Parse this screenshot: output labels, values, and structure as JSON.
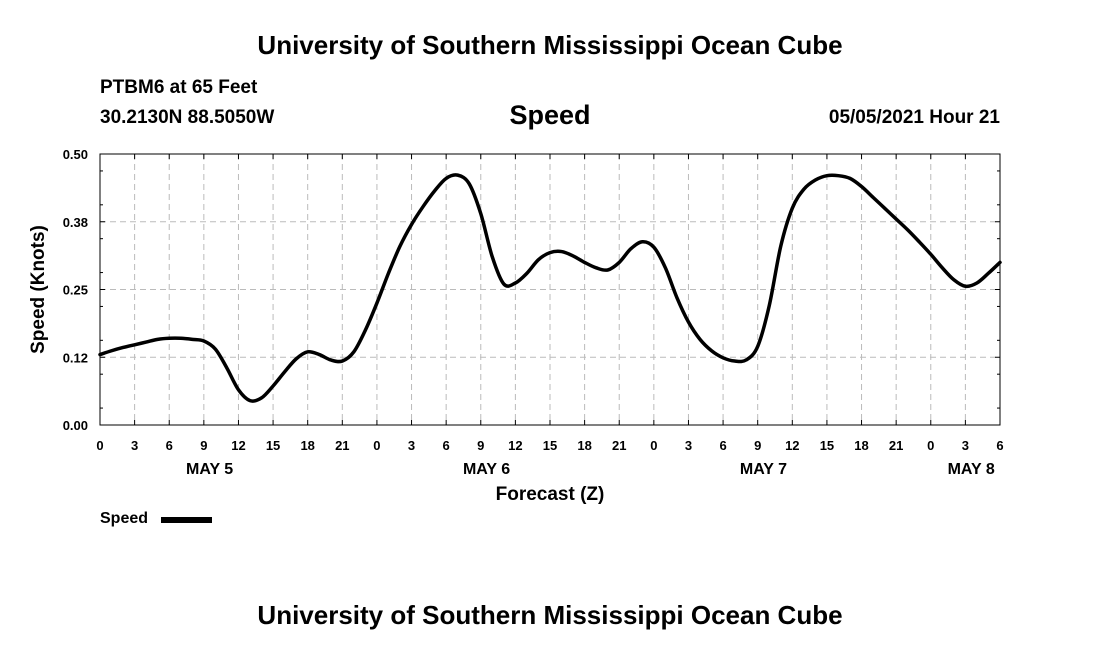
{
  "header": {
    "title": "University of Southern Mississippi Ocean Cube",
    "station": "PTBM6 at 65 Feet",
    "coords": "30.2130N  88.5050W",
    "variable": "Speed",
    "timestamp": "05/05/2021 Hour 21"
  },
  "footer": {
    "title": "University of Southern Mississippi Ocean Cube"
  },
  "legend": {
    "label": "Speed"
  },
  "colors": {
    "line": "#000000",
    "grid": "#bbbbbb",
    "background": "#ffffff"
  },
  "chart_data": {
    "type": "line",
    "title": "Speed",
    "xlabel": "Forecast (Z)",
    "ylabel": "Speed (Knots)",
    "ylim": [
      0,
      0.5
    ],
    "yticks": [
      "0.00",
      "0.12",
      "0.25",
      "0.38",
      "0.50"
    ],
    "xlim_hours": [
      0,
      78
    ],
    "xtick_labels": [
      "0",
      "3",
      "6",
      "9",
      "12",
      "15",
      "18",
      "21",
      "0",
      "3",
      "6",
      "9",
      "12",
      "15",
      "18",
      "21",
      "0",
      "3",
      "6",
      "9",
      "12",
      "15",
      "18",
      "21",
      "0",
      "3",
      "6"
    ],
    "date_labels": [
      {
        "label": "MAY 5",
        "hour": 9.5
      },
      {
        "label": "MAY 6",
        "hour": 33.5
      },
      {
        "label": "MAY 7",
        "hour": 57.5
      },
      {
        "label": "MAY 8",
        "hour": 75.5
      }
    ],
    "grid": true,
    "series": [
      {
        "name": "Speed",
        "x": [
          0,
          1,
          2,
          3,
          4,
          5,
          6,
          7,
          8,
          9,
          10,
          11,
          12,
          13,
          14,
          15,
          16,
          17,
          18,
          19,
          20,
          21,
          22,
          23,
          24,
          25,
          26,
          27,
          28,
          29,
          30,
          31,
          32,
          33,
          34,
          35,
          36,
          37,
          38,
          39,
          40,
          41,
          42,
          43,
          44,
          45,
          46,
          47,
          48,
          49,
          50,
          51,
          52,
          53,
          54,
          55,
          56,
          57,
          58,
          59,
          60,
          61,
          62,
          63,
          64,
          65,
          66,
          67,
          68,
          69,
          70,
          71,
          72,
          73,
          74,
          75,
          76,
          77,
          78
        ],
        "y": [
          0.13,
          0.137,
          0.143,
          0.148,
          0.153,
          0.158,
          0.16,
          0.16,
          0.158,
          0.155,
          0.14,
          0.105,
          0.065,
          0.045,
          0.05,
          0.072,
          0.098,
          0.122,
          0.135,
          0.13,
          0.12,
          0.118,
          0.135,
          0.175,
          0.225,
          0.28,
          0.33,
          0.37,
          0.403,
          0.432,
          0.455,
          0.461,
          0.445,
          0.39,
          0.31,
          0.26,
          0.262,
          0.28,
          0.305,
          0.318,
          0.32,
          0.312,
          0.3,
          0.29,
          0.286,
          0.3,
          0.325,
          0.338,
          0.328,
          0.29,
          0.235,
          0.19,
          0.158,
          0.137,
          0.124,
          0.118,
          0.12,
          0.145,
          0.22,
          0.33,
          0.4,
          0.435,
          0.452,
          0.46,
          0.46,
          0.455,
          0.44,
          0.42,
          0.4,
          0.38,
          0.36,
          0.338,
          0.315,
          0.29,
          0.268,
          0.256,
          0.262,
          0.28,
          0.3
        ]
      }
    ]
  }
}
